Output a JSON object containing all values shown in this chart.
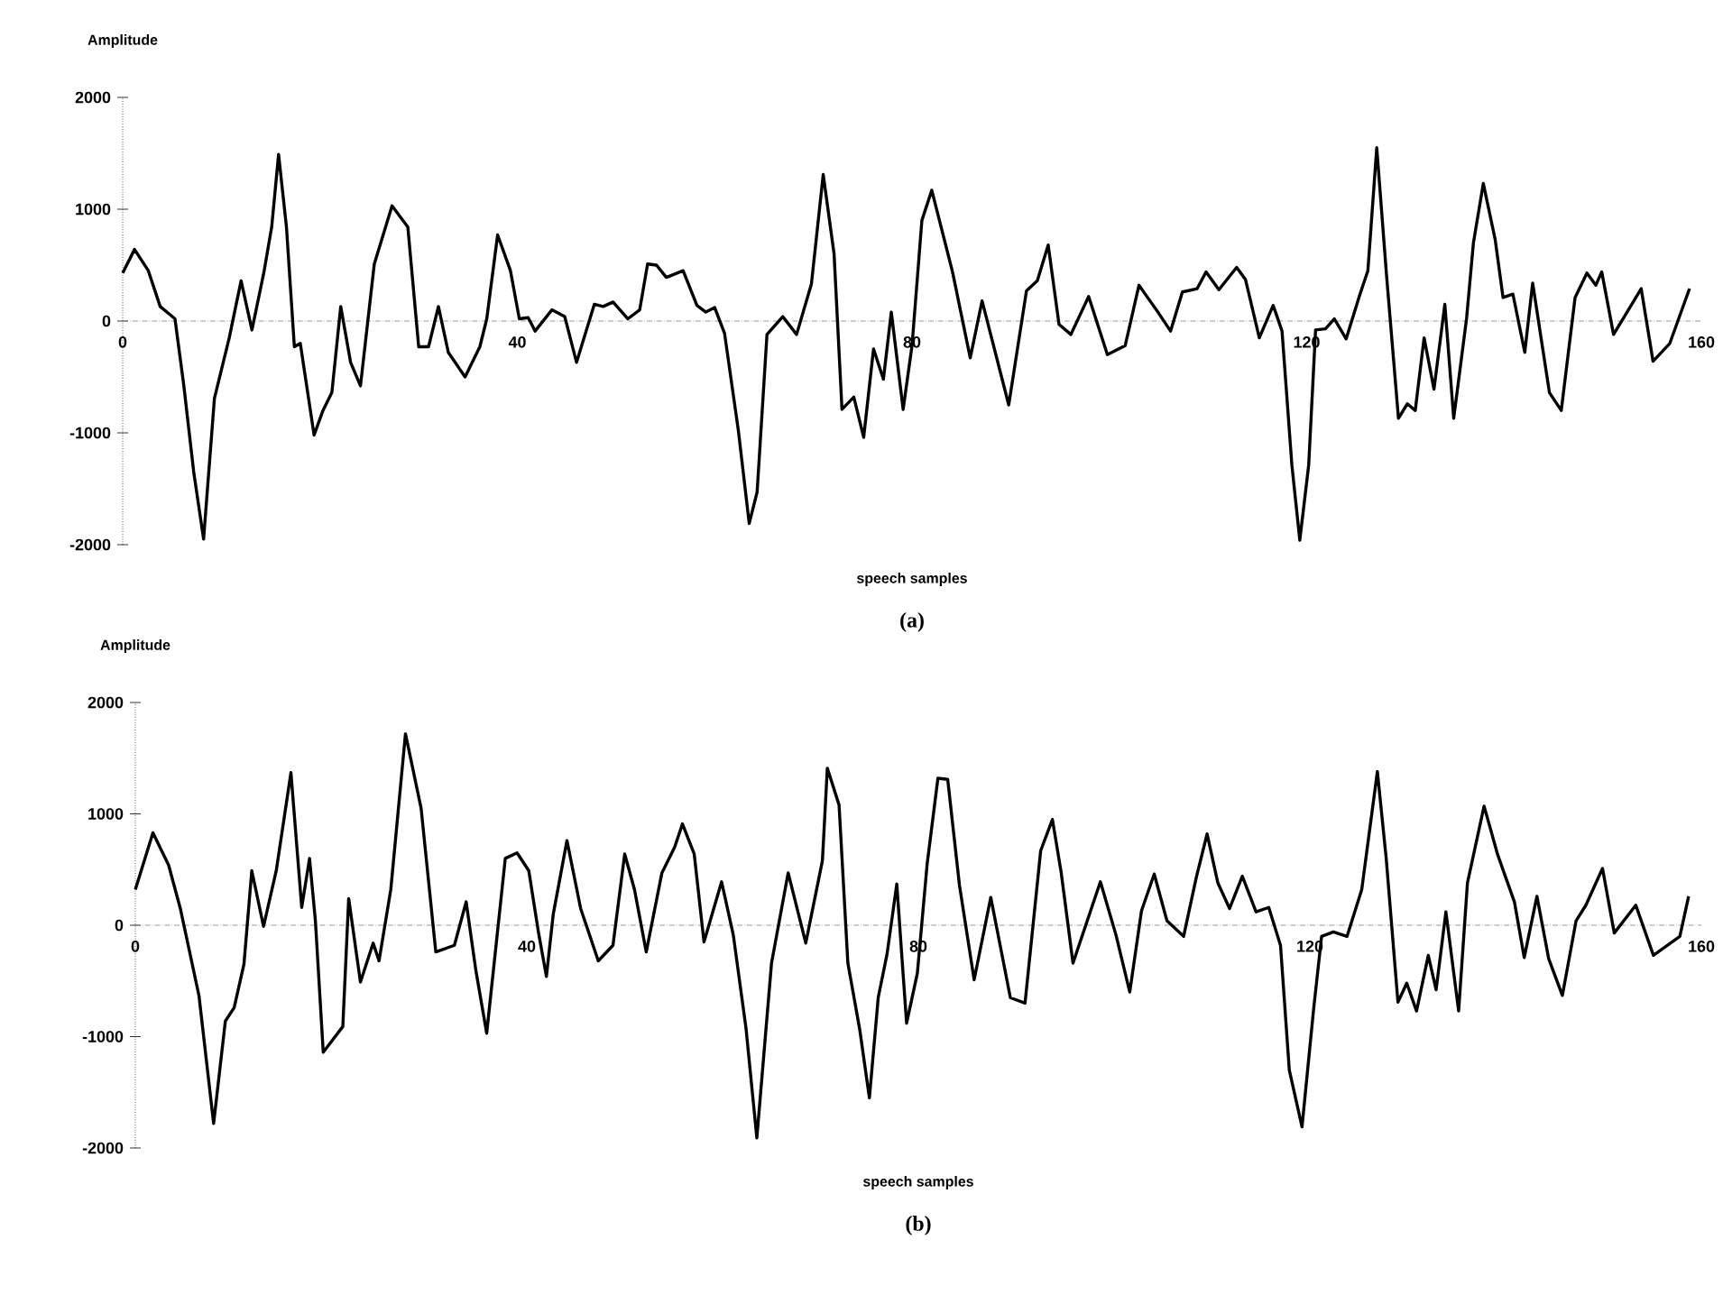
{
  "chart_data": [
    {
      "type": "line",
      "xlabel": "speech samples",
      "ylabel": "Amplitude",
      "annotations": [
        "(a)"
      ],
      "color": "#000000",
      "xlim": [
        0,
        160
      ],
      "xticks": [
        0,
        40,
        80,
        120,
        160
      ],
      "ylim": [
        -2000,
        2000
      ],
      "yticks": [
        -2000,
        -1000,
        0,
        1000,
        2000
      ],
      "x": [
        0,
        1.2,
        2.6,
        3.8,
        5.3,
        6.2,
        7.2,
        8.2,
        9.3,
        10.8,
        12.0,
        13.1,
        14.3,
        15.1,
        15.8,
        16.6,
        17.4,
        18.0,
        19.4,
        20.3,
        21.2,
        22.1,
        23.1,
        24.1,
        25.5,
        27.3,
        28.9,
        30.0,
        31.0,
        32.0,
        33.0,
        34.7,
        36.2,
        36.9,
        38.0,
        39.3,
        40.2,
        41.1,
        41.8,
        43.5,
        44.8,
        46.0,
        47.8,
        48.7,
        49.7,
        51.2,
        52.4,
        53.2,
        54.1,
        55.1,
        56.8,
        58.2,
        59.1,
        60.0,
        61.0,
        62.4,
        63.5,
        64.3,
        65.3,
        66.9,
        68.3,
        69.8,
        71.0,
        72.1,
        72.9,
        74.1,
        75.1,
        76.1,
        77.1,
        77.9,
        79.1,
        80.0,
        81.0,
        82.0,
        84.1,
        85.9,
        87.1,
        89.8,
        91.6,
        92.7,
        93.8,
        94.9,
        96.1,
        97.9,
        99.8,
        101.6,
        103.0,
        105.0,
        106.2,
        107.4,
        108.9,
        109.8,
        111.1,
        112.9,
        113.8,
        115.2,
        116.6,
        117.5,
        118.5,
        119.3,
        120.2,
        120.9,
        121.9,
        122.8,
        124.0,
        125.4,
        126.2,
        127.1,
        128.1,
        129.3,
        130.2,
        131.0,
        131.9,
        132.9,
        134.0,
        134.9,
        136.2,
        136.9,
        137.9,
        139.1,
        139.9,
        140.9,
        142.1,
        142.9,
        144.6,
        145.8,
        147.2,
        148.4,
        149.3,
        149.9,
        151.1,
        152.4,
        153.9,
        155.1,
        156.8,
        158.8
      ],
      "values": [
        430,
        640,
        450,
        130,
        20,
        -580,
        -1350,
        -1950,
        -690,
        -150,
        360,
        -80,
        430,
        840,
        1490,
        840,
        -230,
        -200,
        -1020,
        -800,
        -640,
        130,
        -370,
        -580,
        510,
        1030,
        840,
        -230,
        -230,
        130,
        -280,
        -500,
        -230,
        20,
        770,
        450,
        20,
        30,
        -90,
        100,
        40,
        -370,
        150,
        130,
        170,
        20,
        100,
        510,
        500,
        390,
        450,
        140,
        80,
        120,
        -110,
        -980,
        -1810,
        -1530,
        -120,
        40,
        -120,
        330,
        1310,
        600,
        -790,
        -680,
        -1040,
        -250,
        -520,
        80,
        -790,
        -220,
        900,
        1170,
        440,
        -330,
        180,
        -750,
        270,
        360,
        680,
        -30,
        -120,
        220,
        -300,
        -220,
        320,
        70,
        -90,
        260,
        290,
        440,
        280,
        480,
        370,
        -150,
        140,
        -90,
        -1290,
        -1960,
        -1290,
        -80,
        -70,
        20,
        -160,
        240,
        450,
        1550,
        400,
        -870,
        -740,
        -800,
        -150,
        -610,
        150,
        -870,
        20,
        700,
        1230,
        730,
        210,
        240,
        -280,
        340,
        -640,
        -800,
        210,
        430,
        320,
        440,
        -120,
        70,
        290,
        -360,
        -200,
        290
      ]
    },
    {
      "type": "line",
      "xlabel": "speech samples",
      "ylabel": "Amplitude",
      "annotations": [
        "(b)"
      ],
      "color": "#000000",
      "xlim": [
        0,
        160
      ],
      "xticks": [
        0,
        40,
        80,
        120,
        160
      ],
      "ylim": [
        -2000,
        2000
      ],
      "yticks": [
        -2000,
        -1000,
        0,
        1000,
        2000
      ],
      "x": [
        0,
        1.8,
        3.4,
        4.6,
        6.5,
        8.0,
        9.2,
        10.1,
        11.1,
        11.9,
        13.1,
        14.4,
        15.9,
        17.0,
        17.8,
        18.4,
        19.2,
        21.2,
        21.8,
        23.0,
        24.3,
        24.9,
        26.1,
        27.6,
        29.2,
        30.7,
        32.6,
        33.8,
        34.8,
        35.9,
        37.8,
        39.0,
        40.2,
        41.2,
        42.0,
        42.7,
        44.1,
        45.5,
        47.3,
        48.8,
        50.0,
        51.0,
        52.2,
        53.8,
        55.1,
        55.9,
        57.1,
        58.1,
        59.9,
        61.1,
        62.4,
        63.5,
        65.0,
        66.7,
        68.5,
        70.2,
        70.7,
        71.9,
        72.8,
        74.0,
        75.0,
        75.9,
        76.8,
        77.8,
        78.3,
        78.8,
        79.9,
        80.9,
        82.0,
        83.0,
        84.2,
        85.7,
        87.4,
        89.4,
        90.9,
        92.5,
        93.7,
        94.6,
        95.8,
        98.6,
        100.2,
        101.6,
        102.8,
        104.1,
        105.4,
        107.1,
        108.4,
        109.5,
        110.6,
        111.8,
        113.1,
        114.5,
        115.8,
        117.0,
        117.9,
        119.2,
        120.4,
        121.2,
        122.4,
        123.8,
        125.3,
        126.9,
        127.8,
        129.0,
        129.9,
        130.9,
        132.1,
        132.9,
        133.9,
        135.2,
        136.1,
        137.8,
        139.2,
        140.9,
        141.9,
        143.2,
        144.4,
        145.8,
        147.2,
        148.2,
        149.9,
        151.1,
        153.3,
        155.1,
        157.8,
        158.7
      ],
      "values": [
        320,
        830,
        540,
        150,
        -630,
        -1780,
        -860,
        -740,
        -350,
        490,
        -10,
        490,
        1370,
        160,
        600,
        40,
        -1140,
        -910,
        240,
        -510,
        -160,
        -320,
        320,
        1720,
        1050,
        -240,
        -180,
        210,
        -410,
        -970,
        600,
        650,
        490,
        -70,
        -460,
        100,
        760,
        150,
        -320,
        -180,
        640,
        320,
        -240,
        470,
        700,
        910,
        640,
        -150,
        390,
        -90,
        -930,
        -1910,
        -340,
        470,
        -160,
        580,
        1410,
        1080,
        -340,
        -930,
        -1550,
        -650,
        -260,
        370,
        -260,
        -880,
        -430,
        550,
        1320,
        1310,
        360,
        -490,
        250,
        -650,
        -700,
        670,
        950,
        470,
        -340,
        390,
        -90,
        -600,
        130,
        460,
        40,
        -100,
        430,
        820,
        380,
        150,
        440,
        120,
        160,
        -180,
        -1300,
        -1810,
        -740,
        -100,
        -60,
        -100,
        320,
        1380,
        600,
        -690,
        -520,
        -770,
        -270,
        -580,
        120,
        -770,
        380,
        1070,
        630,
        210,
        -290,
        260,
        -300,
        -630,
        40,
        180,
        510,
        -70,
        180,
        -270,
        -100,
        260
      ]
    }
  ]
}
